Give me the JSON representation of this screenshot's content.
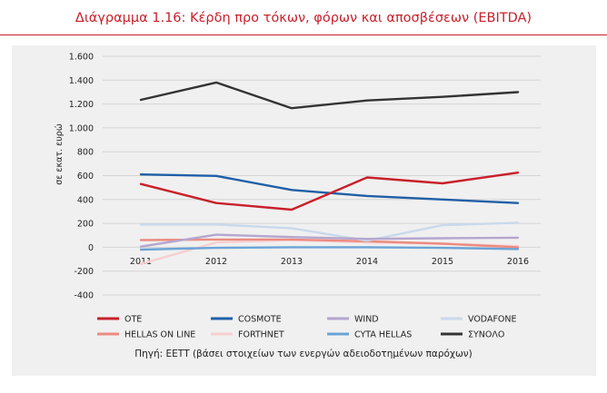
{
  "title": "Διάγραμμα 1.16: Κέρδη προ τόκων, φόρων και αποσβέσεων (EBITDA)",
  "source": "Πηγή: ΕΕΤΤ (βάσει στοιχείων των ενεργών αδειοδοτημένων παρόχων)",
  "colors": {
    "title": "#c8202a",
    "panel": "#f0f0f0"
  },
  "chart_data": {
    "type": "line",
    "ylabel": "σε εκατ. ευρώ",
    "xlabel": "",
    "x": [
      "2011",
      "2012",
      "2013",
      "2014",
      "2015",
      "2016"
    ],
    "ylim": [
      -400,
      1600
    ],
    "yticks": [
      -400,
      -200,
      0,
      200,
      400,
      600,
      800,
      "1.000",
      "1.200",
      "1.400",
      "1.600"
    ],
    "ytick_labels": [
      "-400",
      "-200",
      "0",
      "200",
      "400",
      "600",
      "800",
      "1.000",
      "1.200",
      "1.400",
      "1.600"
    ],
    "grid": "horizontal",
    "legend_position": "bottom",
    "series": [
      {
        "name": "OTE",
        "color": "#c8202a",
        "values": [
          530,
          370,
          315,
          585,
          535,
          625
        ]
      },
      {
        "name": "COSMOTE",
        "color": "#1f5fa6",
        "values": [
          610,
          598,
          480,
          430,
          400,
          370
        ]
      },
      {
        "name": "WIND",
        "color": "#b5a6cf",
        "values": [
          5,
          105,
          85,
          70,
          75,
          80
        ]
      },
      {
        "name": "VODAFONE",
        "color": "#c9d9ec",
        "values": [
          190,
          190,
          160,
          55,
          185,
          205
        ]
      },
      {
        "name": "HELLAS ON LINE",
        "color": "#ec8b80",
        "values": [
          60,
          65,
          65,
          50,
          30,
          0
        ]
      },
      {
        "name": "FORTHNET",
        "color": "#f7cfd0",
        "values": [
          -140,
          40,
          60,
          40,
          30,
          10
        ]
      },
      {
        "name": "CYTA HELLAS",
        "color": "#6ba3d6",
        "values": [
          -20,
          -5,
          0,
          0,
          -5,
          -15
        ]
      },
      {
        "name": "ΣΥΝΟΛΟ",
        "color": "#333333",
        "values": [
          1235,
          1380,
          1165,
          1230,
          1260,
          1300
        ]
      }
    ]
  }
}
